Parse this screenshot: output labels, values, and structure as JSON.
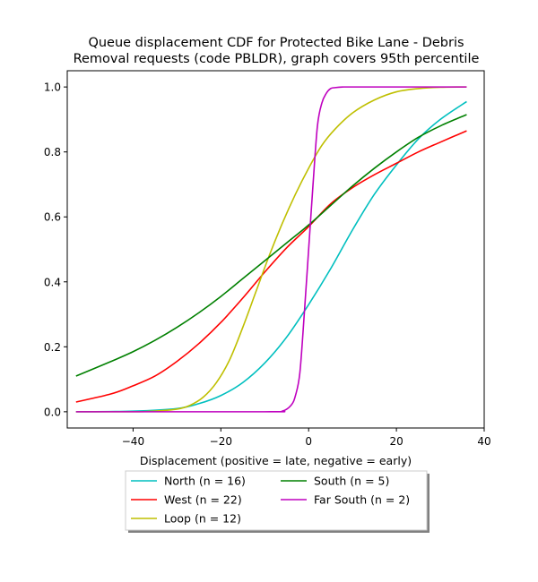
{
  "chart_data": {
    "type": "line",
    "title_lines": [
      "Queue displacement CDF for Protected Bike Lane - Debris",
      "Removal  requests (code PBLDR), graph covers 95th percentile"
    ],
    "xlabel": "Displacement (positive = late, negative = early)",
    "ylabel": "",
    "xlim": [
      -55,
      40
    ],
    "ylim": [
      -0.05,
      1.05
    ],
    "xticks": [
      -40,
      -20,
      0,
      20,
      40
    ],
    "xtick_labels": [
      "−40",
      "−20",
      "0",
      "20",
      "40"
    ],
    "yticks": [
      0.0,
      0.2,
      0.4,
      0.6,
      0.8,
      1.0
    ],
    "ytick_labels": [
      "0.0",
      "0.2",
      "0.4",
      "0.6",
      "0.8",
      "1.0"
    ],
    "grid": false,
    "legend_position": "below plot",
    "series": [
      {
        "name": "North (n = 16)",
        "color": "#00bfbf",
        "x": [
          -53,
          -40,
          -30,
          -25,
          -20,
          -15,
          -10,
          -5,
          0,
          5,
          10,
          15,
          20,
          25,
          30,
          36
        ],
        "y": [
          0.0,
          0.002,
          0.01,
          0.025,
          0.05,
          0.09,
          0.15,
          0.23,
          0.33,
          0.44,
          0.56,
          0.67,
          0.76,
          0.84,
          0.9,
          0.955
        ]
      },
      {
        "name": "West (n = 22)",
        "color": "#ff0000",
        "x": [
          -53,
          -45,
          -40,
          -35,
          -30,
          -25,
          -20,
          -15,
          -10,
          -5,
          0,
          5,
          10,
          15,
          20,
          25,
          30,
          36
        ],
        "y": [
          0.03,
          0.055,
          0.08,
          0.11,
          0.155,
          0.21,
          0.275,
          0.35,
          0.43,
          0.505,
          0.57,
          0.64,
          0.69,
          0.73,
          0.765,
          0.8,
          0.83,
          0.865
        ]
      },
      {
        "name": "Loop (n = 12)",
        "color": "#bfbf00",
        "x": [
          -53,
          -40,
          -35,
          -30,
          -27,
          -24,
          -21,
          -18,
          -15,
          -12,
          -9,
          -6,
          -3,
          0,
          3,
          6,
          10,
          15,
          20,
          25,
          30,
          36
        ],
        "y": [
          0.0,
          0.0,
          0.002,
          0.008,
          0.02,
          0.045,
          0.09,
          0.16,
          0.26,
          0.37,
          0.48,
          0.58,
          0.67,
          0.75,
          0.82,
          0.87,
          0.92,
          0.96,
          0.985,
          0.995,
          0.999,
          1.0
        ]
      },
      {
        "name": "South (n = 5)",
        "color": "#008000",
        "x": [
          -53,
          -45,
          -40,
          -35,
          -30,
          -25,
          -20,
          -15,
          -10,
          -5,
          0,
          5,
          10,
          15,
          20,
          25,
          30,
          36
        ],
        "y": [
          0.11,
          0.155,
          0.185,
          0.22,
          0.26,
          0.305,
          0.355,
          0.41,
          0.465,
          0.52,
          0.575,
          0.635,
          0.695,
          0.75,
          0.8,
          0.845,
          0.88,
          0.915
        ]
      },
      {
        "name": "Far South (n = 2)",
        "color": "#bf00bf",
        "x": [
          -53,
          -10,
          -6,
          -4,
          -3,
          -2,
          -1,
          0,
          1,
          2,
          3,
          4,
          5,
          6,
          8,
          12,
          36
        ],
        "y": [
          0.0,
          0.0,
          0.002,
          0.02,
          0.05,
          0.12,
          0.3,
          0.5,
          0.7,
          0.88,
          0.95,
          0.98,
          0.995,
          0.998,
          1.0,
          1.0,
          1.0
        ]
      }
    ]
  }
}
